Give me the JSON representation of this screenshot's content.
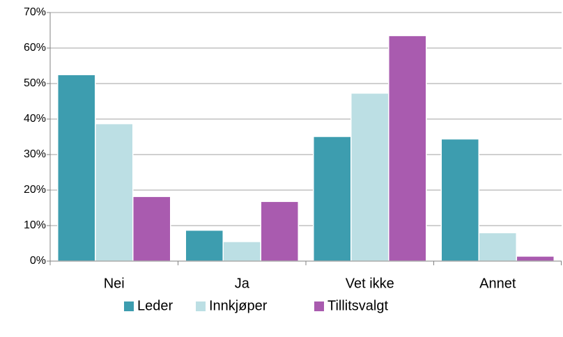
{
  "chart_data": {
    "type": "bar",
    "categories": [
      "Nei",
      "Ja",
      "Vet ikke",
      "Annet"
    ],
    "series": [
      {
        "name": "Leder",
        "color": "#3d9daf",
        "values": [
          52.5,
          8.7,
          35.1,
          34.4
        ]
      },
      {
        "name": "Innkjøper",
        "color": "#bcdfe4",
        "values": [
          38.7,
          5.5,
          47.3,
          8.0
        ]
      },
      {
        "name": "Tillitsvalgt",
        "color": "#a95baf",
        "values": [
          18.2,
          16.8,
          63.5,
          1.4
        ]
      }
    ],
    "ylim": [
      0,
      70
    ],
    "yticks": [
      {
        "value": 0,
        "label": "0%"
      },
      {
        "value": 10,
        "label": "10%"
      },
      {
        "value": 20,
        "label": "20%"
      },
      {
        "value": 30,
        "label": "30%"
      },
      {
        "value": 40,
        "label": "40%"
      },
      {
        "value": 50,
        "label": "50%"
      },
      {
        "value": 60,
        "label": "60%"
      },
      {
        "value": 70,
        "label": "70%"
      }
    ],
    "grid": true,
    "legend": "bottom"
  }
}
